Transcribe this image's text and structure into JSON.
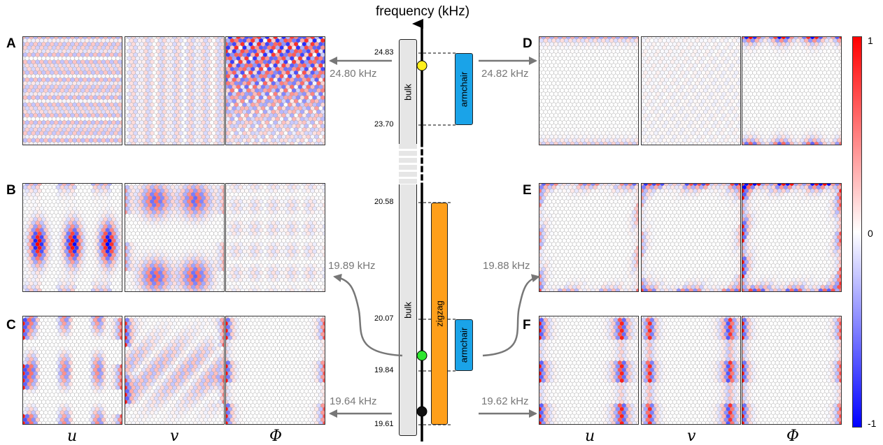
{
  "axis": {
    "title": "frequency (kHz)"
  },
  "ticks": [
    "24.83",
    "23.70",
    "20.58",
    "20.07",
    "19.84",
    "19.61"
  ],
  "bands": {
    "bulk_top": "bulk",
    "bulk_bottom": "bulk",
    "armchair_top": "armchair",
    "zigzag": "zigzag",
    "armchair_bottom": "armchair"
  },
  "modes": {
    "A": "24.80 kHz",
    "B": "19.89 kHz",
    "C": "19.64 kHz",
    "D": "24.82 kHz",
    "E": "19.88 kHz",
    "F": "19.62 kHz"
  },
  "panel_letters": [
    "A",
    "B",
    "C",
    "D",
    "E",
    "F"
  ],
  "field_labels": {
    "u": "u",
    "v": "v",
    "phi": "Φ"
  },
  "colorbar": {
    "max": "1",
    "mid": "0",
    "min": "-1"
  },
  "colors": {
    "bulk": "#e6e6e6",
    "armchair": "#1aa3e8",
    "zigzag": "#ff9f1a",
    "marker_top": "#ffef1a",
    "marker_mid": "#2ee62e",
    "marker_bottom": "#111111",
    "arrow": "#777777",
    "positive": "#ff0000",
    "negative": "#0000ff"
  }
}
